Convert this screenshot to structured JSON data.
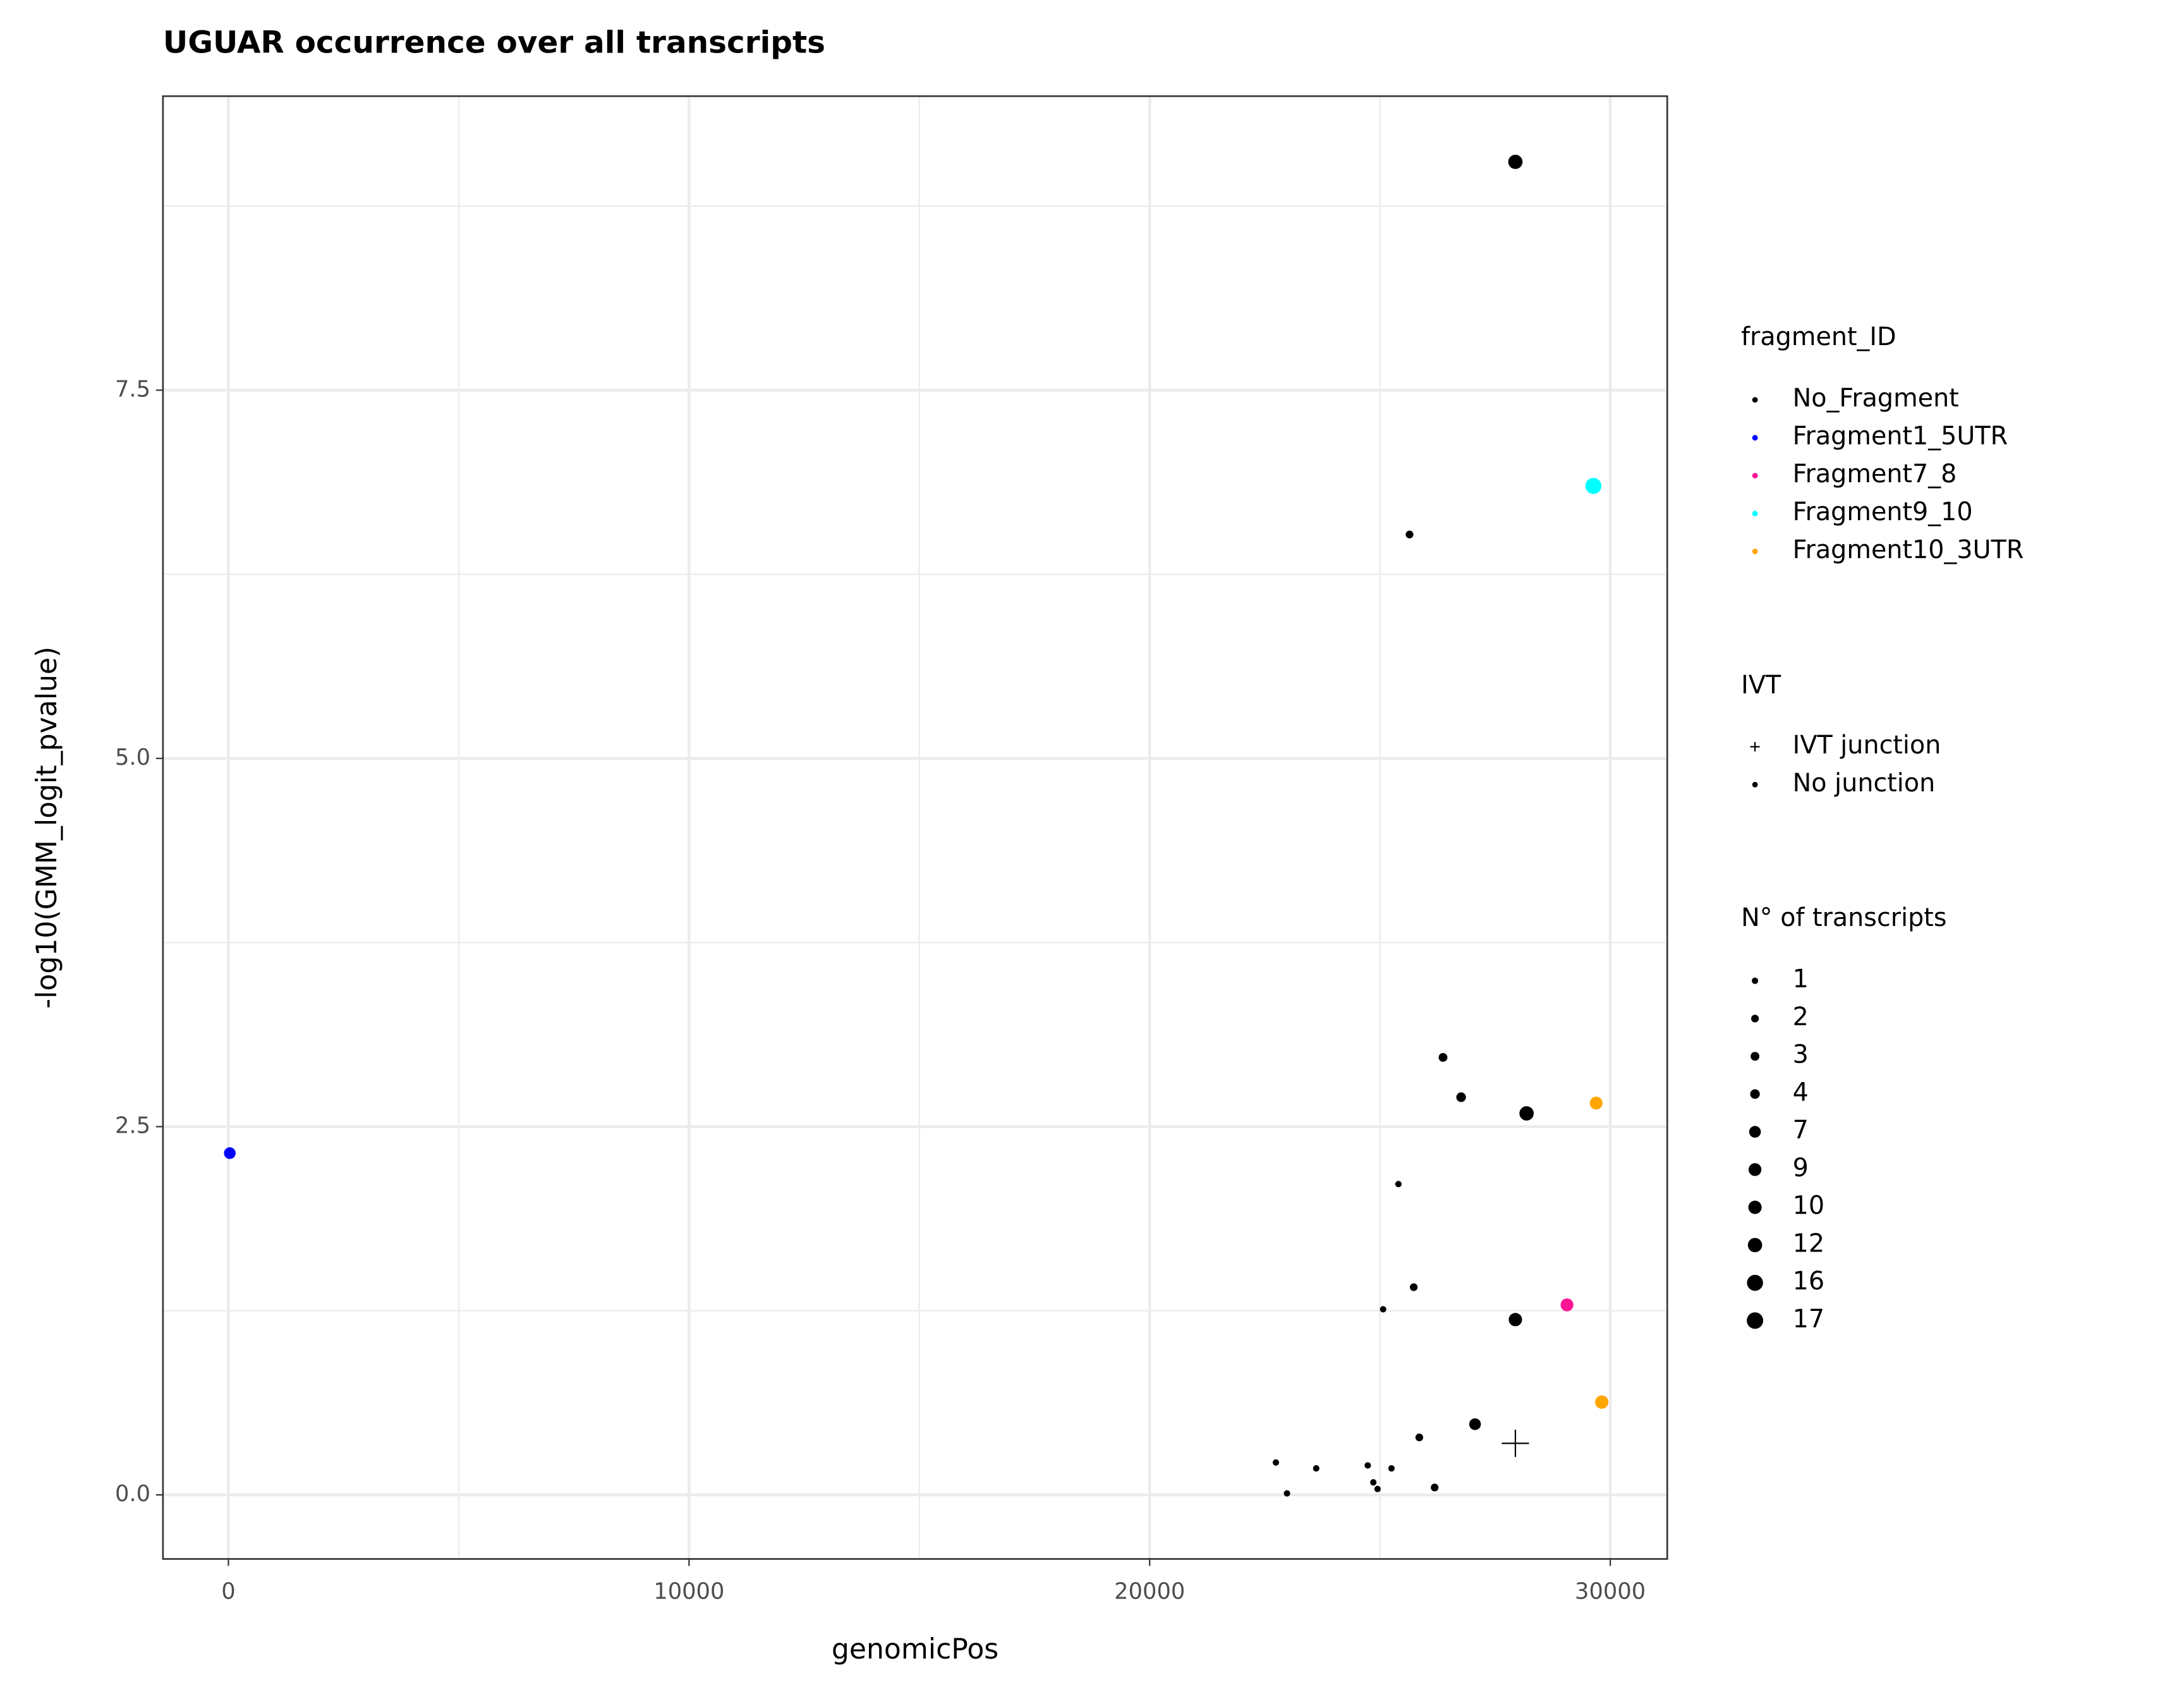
{
  "chart_data": {
    "type": "scatter",
    "title": "UGUAR occurrence over all transcripts",
    "x_label": "genomicPos",
    "y_label": "-log10(GMM_logit_pvalue)",
    "xlim": [
      -1421,
      31237
    ],
    "ylim": [
      -0.435,
      9.496
    ],
    "xticks": [
      0,
      10000,
      20000,
      30000
    ],
    "yticks": [
      0.0,
      2.5,
      5.0,
      7.5
    ],
    "grid": true,
    "legend_title": "fragment_ID",
    "series": [
      {
        "name": "No_Fragment",
        "color": "#000000",
        "x": [
          27940,
          25642,
          26369,
          26762,
          28183,
          25401,
          25733,
          25068,
          27940,
          27064,
          27940,
          25854,
          22740,
          22982,
          23616,
          24735,
          24856,
          24947,
          25250,
          26187
        ],
        "values": [
          9.05,
          6.52,
          2.97,
          2.7,
          2.59,
          2.11,
          1.41,
          1.26,
          1.19,
          0.48,
          0.35,
          0.39,
          0.22,
          0.01,
          0.18,
          0.2,
          0.085,
          0.04,
          0.18,
          0.05
        ],
        "sizes": [
          12,
          2,
          3,
          4,
          12,
          1,
          2,
          1,
          10,
          7,
          16,
          2,
          1,
          1,
          1,
          1,
          1,
          1,
          1,
          2
        ],
        "shapes": [
          "circle",
          "circle",
          "circle",
          "circle",
          "circle",
          "circle",
          "circle",
          "circle",
          "circle",
          "circle",
          "plus",
          "circle",
          "circle",
          "circle",
          "circle",
          "circle",
          "circle",
          "circle",
          "circle",
          "circle"
        ]
      },
      {
        "name": "Fragment1_5UTR",
        "color": "#0000FF",
        "x": [
          30
        ],
        "values": [
          2.32
        ],
        "sizes": [
          7
        ],
        "shapes": [
          "circle"
        ]
      },
      {
        "name": "Fragment7_8",
        "color": "#FF1493",
        "x": [
          29060
        ],
        "values": [
          1.29
        ],
        "sizes": [
          9
        ],
        "shapes": [
          "circle"
        ]
      },
      {
        "name": "Fragment9_10",
        "color": "#00FFFF",
        "x": [
          29634
        ],
        "values": [
          6.85
        ],
        "sizes": [
          16
        ],
        "shapes": [
          "circle"
        ]
      },
      {
        "name": "Fragment10_3UTR",
        "color": "#FFA500",
        "x": [
          29694,
          29816
        ],
        "values": [
          2.66,
          0.63
        ],
        "sizes": [
          9,
          10
        ],
        "shapes": [
          "circle",
          "circle"
        ]
      }
    ],
    "shape_legend": {
      "title": "IVT",
      "entries": [
        {
          "label": "IVT junction",
          "shape": "plus"
        },
        {
          "label": "No junction",
          "shape": "circle"
        }
      ]
    },
    "size_legend": {
      "title": "N° of transcripts",
      "values": [
        1,
        2,
        3,
        4,
        7,
        9,
        10,
        12,
        16,
        17
      ]
    }
  }
}
